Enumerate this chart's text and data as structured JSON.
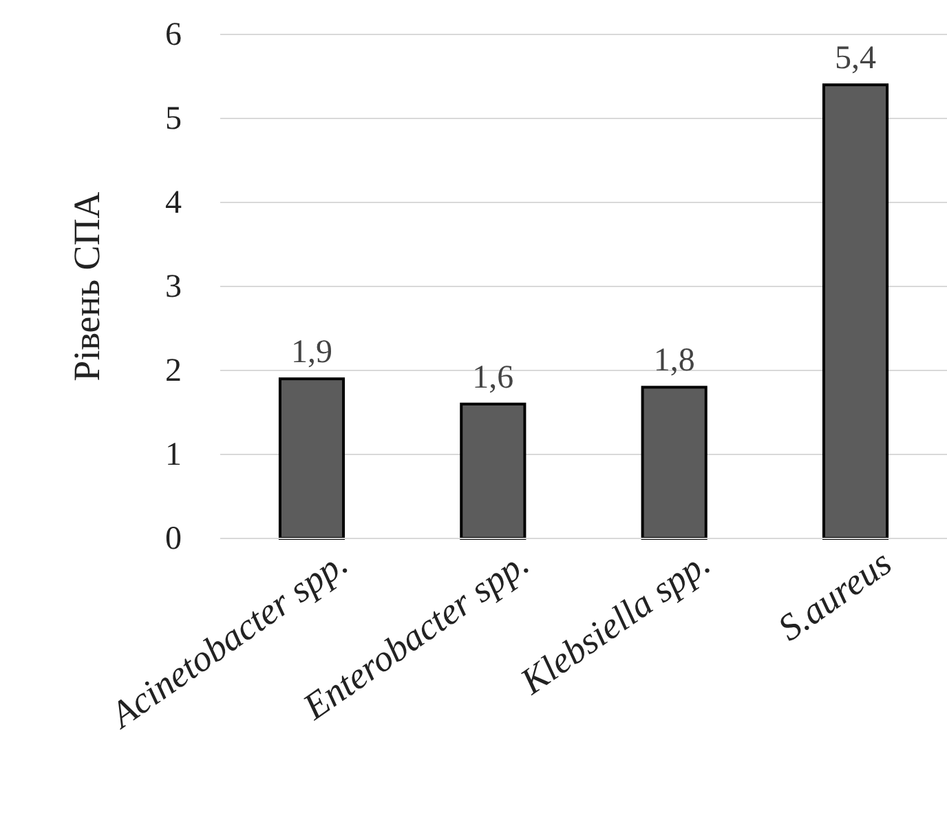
{
  "chart_data": {
    "type": "bar",
    "ylabel": "Рівень СПА",
    "categories": [
      "Acinetobacter spp.",
      "Enterobacter spp.",
      "Klebsiella spp.",
      "S.aureus"
    ],
    "values": [
      1.9,
      1.6,
      1.8,
      5.4
    ],
    "value_labels": [
      "1,9",
      "1,6",
      "1,8",
      "5,4"
    ],
    "color": "#5c5c5c",
    "ylim": [
      0,
      6
    ],
    "yticks": [
      0,
      1,
      2,
      3,
      4,
      5,
      6
    ],
    "grid": "y"
  }
}
